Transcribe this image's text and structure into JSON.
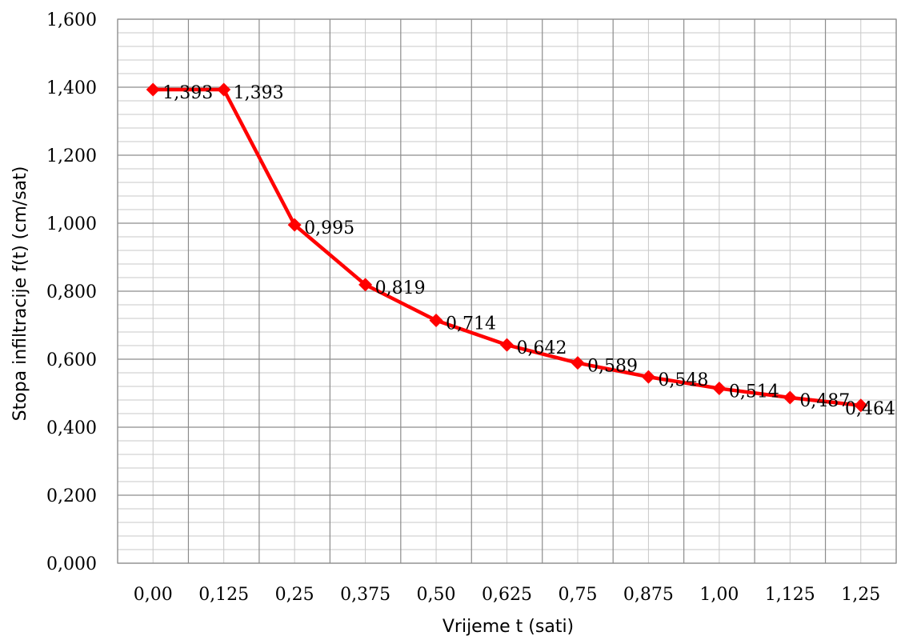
{
  "chart_data": {
    "type": "line",
    "categories": [
      "0,00",
      "0,125",
      "0,25",
      "0,375",
      "0,50",
      "0,625",
      "0,75",
      "0,875",
      "1,00",
      "1,125",
      "1,25"
    ],
    "series": [
      {
        "values": [
          1.393,
          1.393,
          0.995,
          0.819,
          0.714,
          0.642,
          0.589,
          0.548,
          0.514,
          0.487,
          0.464
        ],
        "labels": [
          "1,393",
          "1,393",
          "0,995",
          "0,819",
          "0,714",
          "0,642",
          "0,589",
          "0,548",
          "0,514",
          "0,487",
          "0,464"
        ],
        "color": "#ff0000",
        "marker": "diamond"
      }
    ],
    "xlabel": "Vrijeme t (sati)",
    "ylabel": "Stopa infiltracije f(t) (cm/sat)",
    "ylim": [
      0,
      1.6
    ],
    "yticks": [
      0,
      0.2,
      0.4,
      0.6,
      0.8,
      1.0,
      1.2,
      1.4,
      1.6
    ],
    "ytick_labels": [
      "0,000",
      "0,200",
      "0,400",
      "0,600",
      "0,800",
      "1,000",
      "1,200",
      "1,400",
      "1,600"
    ],
    "grid": true,
    "minor_grid": true,
    "legend": "none"
  }
}
